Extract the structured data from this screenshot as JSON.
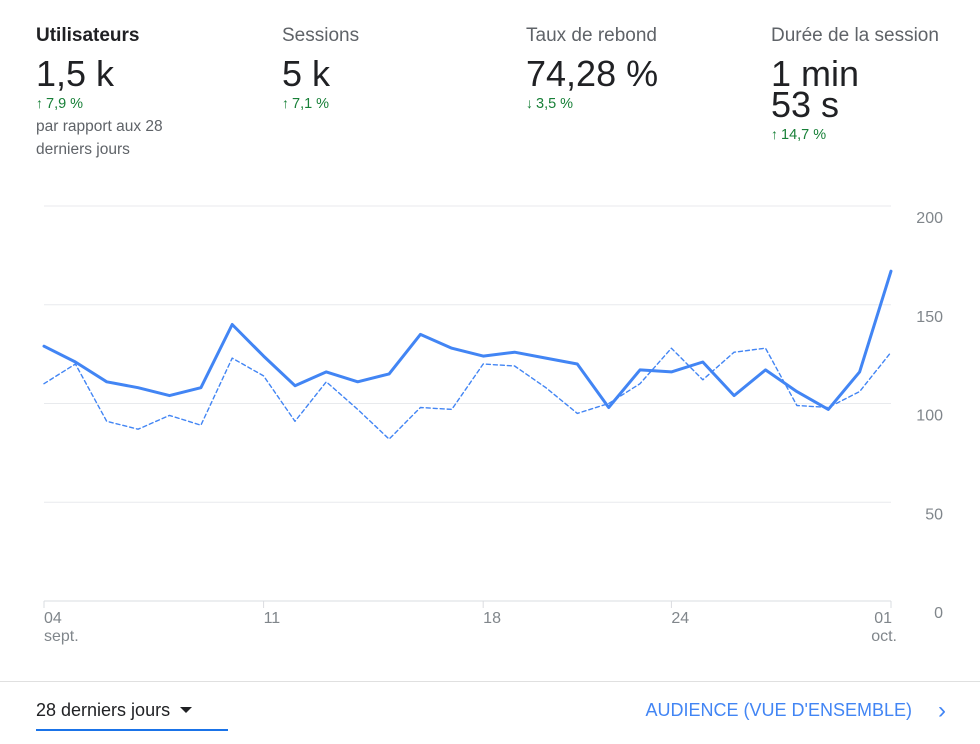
{
  "metrics": [
    {
      "label": "Utilisateurs",
      "value": "1,5 k",
      "change": "7,9 %",
      "direction": "up",
      "compare": "par rapport aux 28 derniers jours"
    },
    {
      "label": "Sessions",
      "value": "5 k",
      "change": "7,1 %",
      "direction": "up"
    },
    {
      "label": "Taux de rebond",
      "value": "74,28 %",
      "change": "3,5 %",
      "direction": "down"
    },
    {
      "label": "Durée de la session",
      "value_line1": "1 min",
      "value_line2": "53 s",
      "change": "14,7 %",
      "direction": "up"
    }
  ],
  "chart_data": {
    "type": "line",
    "x": [
      "04 sept.",
      "05",
      "06",
      "07",
      "08",
      "09",
      "10",
      "11",
      "12",
      "13",
      "14",
      "15",
      "16",
      "17",
      "18",
      "19",
      "20",
      "21",
      "22",
      "23",
      "24",
      "25",
      "26",
      "27",
      "28",
      "29",
      "30",
      "01 oct."
    ],
    "x_tick_labels": [
      {
        "index": 0,
        "line1": "04",
        "line2": "sept."
      },
      {
        "index": 7,
        "line1": "11",
        "line2": ""
      },
      {
        "index": 14,
        "line1": "18",
        "line2": ""
      },
      {
        "index": 20,
        "line1": "24",
        "line2": ""
      },
      {
        "index": 27,
        "line1": "01",
        "line2": "oct."
      }
    ],
    "y_ticks": [
      0,
      50,
      100,
      150,
      200
    ],
    "y_tick_labels": [
      "0",
      "50",
      "100",
      "150",
      "200"
    ],
    "ylim": [
      0,
      200
    ],
    "grid": true,
    "series": [
      {
        "style": "solid",
        "color": "#4285f4",
        "values": [
          129,
          121,
          111,
          108,
          104,
          108,
          140,
          124,
          109,
          116,
          111,
          115,
          135,
          128,
          124,
          126,
          123,
          120,
          98,
          117,
          116,
          121,
          104,
          117,
          106,
          97,
          116,
          167
        ]
      },
      {
        "style": "dashed",
        "color": "#4285f4",
        "values": [
          110,
          120,
          91,
          87,
          94,
          89,
          123,
          114,
          91,
          111,
          97,
          82,
          98,
          97,
          120,
          119,
          108,
          95,
          100,
          110,
          128,
          112,
          126,
          128,
          99,
          98,
          106,
          126
        ]
      }
    ]
  },
  "footer": {
    "range_label": "28 derniers jours",
    "report_link": "AUDIENCE (VUE D'ENSEMBLE)",
    "chevron": "›"
  }
}
